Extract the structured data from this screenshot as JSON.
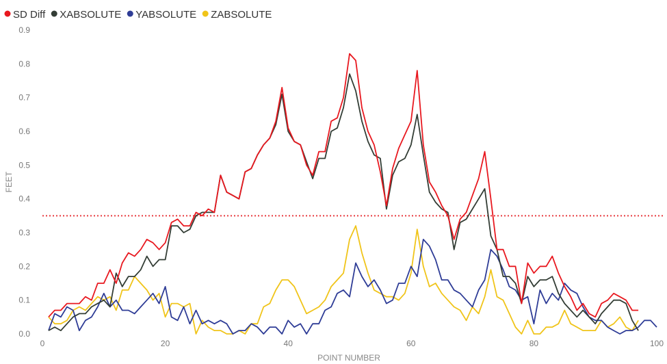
{
  "chart_data": {
    "type": "line",
    "xlabel": "POINT NUMBER",
    "ylabel": "FEET",
    "xlim": [
      0,
      100
    ],
    "ylim": [
      0,
      0.9
    ],
    "x_ticks": [
      0,
      20,
      40,
      60,
      80,
      100
    ],
    "y_ticks": [
      0.0,
      0.1,
      0.2,
      0.3,
      0.4,
      0.5,
      0.6,
      0.7,
      0.8,
      0.9
    ],
    "y_tick_labels": [
      "0.0",
      "0.1",
      "0.2",
      "0.3",
      "0.4",
      "0.5",
      "0.6",
      "0.7",
      "0.8",
      "0.9"
    ],
    "x_tick_labels": [
      "0",
      "20",
      "40",
      "60",
      "80",
      "100"
    ],
    "legend_position": "top-left",
    "grid": false,
    "reference_line": {
      "y": 0.35,
      "color": "#e8383d",
      "style": "dotted"
    },
    "series": [
      {
        "name": "SD Diff",
        "color": "#e8181f",
        "values": [
          0.05,
          0.07,
          0.07,
          0.09,
          0.09,
          0.09,
          0.11,
          0.1,
          0.15,
          0.15,
          0.19,
          0.15,
          0.21,
          0.24,
          0.23,
          0.25,
          0.28,
          0.27,
          0.25,
          0.27,
          0.33,
          0.34,
          0.32,
          0.32,
          0.36,
          0.35,
          0.37,
          0.36,
          0.47,
          0.42,
          0.41,
          0.4,
          0.48,
          0.49,
          0.53,
          0.56,
          0.58,
          0.63,
          0.73,
          0.61,
          0.57,
          0.56,
          0.5,
          0.47,
          0.54,
          0.54,
          0.63,
          0.64,
          0.7,
          0.83,
          0.81,
          0.67,
          0.6,
          0.56,
          0.48,
          0.38,
          0.49,
          0.55,
          0.59,
          0.63,
          0.78,
          0.56,
          0.45,
          0.42,
          0.38,
          0.35,
          0.28,
          0.34,
          0.36,
          0.41,
          0.46,
          0.54,
          0.4,
          0.25,
          0.25,
          0.2,
          0.2,
          0.09,
          0.21,
          0.18,
          0.2,
          0.2,
          0.23,
          0.18,
          0.14,
          0.11,
          0.07,
          0.09,
          0.06,
          0.05,
          0.09,
          0.1,
          0.12,
          0.11,
          0.1,
          0.07,
          0.07
        ]
      },
      {
        "name": "XABSOLUTE",
        "color": "#333d35",
        "values": [
          0.01,
          0.02,
          0.01,
          0.03,
          0.05,
          0.06,
          0.06,
          0.08,
          0.09,
          0.1,
          0.08,
          0.18,
          0.14,
          0.17,
          0.17,
          0.19,
          0.23,
          0.2,
          0.22,
          0.22,
          0.32,
          0.32,
          0.3,
          0.31,
          0.35,
          0.36,
          0.36,
          0.36,
          0.47,
          0.42,
          0.41,
          0.4,
          0.48,
          0.49,
          0.53,
          0.56,
          0.58,
          0.62,
          0.71,
          0.6,
          0.57,
          0.56,
          0.51,
          0.46,
          0.52,
          0.52,
          0.6,
          0.61,
          0.67,
          0.77,
          0.72,
          0.63,
          0.57,
          0.53,
          0.52,
          0.37,
          0.47,
          0.51,
          0.52,
          0.56,
          0.65,
          0.53,
          0.42,
          0.39,
          0.37,
          0.36,
          0.25,
          0.33,
          0.34,
          0.37,
          0.4,
          0.43,
          0.29,
          0.25,
          0.17,
          0.17,
          0.15,
          0.09,
          0.17,
          0.14,
          0.16,
          0.16,
          0.17,
          0.12,
          0.09,
          0.07,
          0.05,
          0.07,
          0.05,
          0.03,
          0.06,
          0.08,
          0.1,
          0.1,
          0.09,
          0.04,
          0.01
        ]
      },
      {
        "name": "YABSOLUTE",
        "color": "#2e3c96",
        "values": [
          0.01,
          0.06,
          0.05,
          0.08,
          0.07,
          0.01,
          0.04,
          0.05,
          0.08,
          0.12,
          0.08,
          0.1,
          0.07,
          0.07,
          0.06,
          0.08,
          0.1,
          0.12,
          0.09,
          0.14,
          0.05,
          0.04,
          0.08,
          0.03,
          0.07,
          0.03,
          0.04,
          0.03,
          0.04,
          0.03,
          0.0,
          0.01,
          0.01,
          0.03,
          0.02,
          0.0,
          0.02,
          0.02,
          0.0,
          0.04,
          0.02,
          0.03,
          0.0,
          0.03,
          0.03,
          0.07,
          0.08,
          0.12,
          0.13,
          0.11,
          0.21,
          0.17,
          0.14,
          0.16,
          0.13,
          0.09,
          0.1,
          0.15,
          0.15,
          0.2,
          0.17,
          0.28,
          0.26,
          0.22,
          0.16,
          0.16,
          0.13,
          0.12,
          0.1,
          0.08,
          0.13,
          0.16,
          0.25,
          0.23,
          0.19,
          0.14,
          0.13,
          0.1,
          0.11,
          0.03,
          0.13,
          0.09,
          0.12,
          0.1,
          0.15,
          0.13,
          0.12,
          0.08,
          0.05,
          0.04,
          0.04,
          0.02,
          0.01,
          0.0,
          0.01,
          0.01,
          0.02,
          0.04,
          0.04,
          0.02
        ]
      },
      {
        "name": "ZABSOLUTE",
        "color": "#f0c419",
        "values": [
          0.05,
          0.03,
          0.03,
          0.04,
          0.07,
          0.08,
          0.07,
          0.09,
          0.11,
          0.1,
          0.11,
          0.07,
          0.13,
          0.13,
          0.17,
          0.15,
          0.13,
          0.1,
          0.12,
          0.05,
          0.09,
          0.09,
          0.08,
          0.09,
          0.0,
          0.04,
          0.02,
          0.01,
          0.01,
          0.0,
          0.0,
          0.01,
          0.0,
          0.03,
          0.03,
          0.08,
          0.09,
          0.13,
          0.16,
          0.16,
          0.14,
          0.1,
          0.06,
          0.07,
          0.08,
          0.1,
          0.14,
          0.16,
          0.18,
          0.28,
          0.32,
          0.24,
          0.18,
          0.13,
          0.12,
          0.11,
          0.11,
          0.1,
          0.12,
          0.18,
          0.31,
          0.2,
          0.14,
          0.15,
          0.12,
          0.1,
          0.08,
          0.07,
          0.04,
          0.08,
          0.06,
          0.11,
          0.19,
          0.11,
          0.1,
          0.06,
          0.02,
          0.0,
          0.04,
          0.0,
          0.0,
          0.02,
          0.02,
          0.03,
          0.07,
          0.03,
          0.02,
          0.01,
          0.01,
          0.01,
          0.04,
          0.02,
          0.03,
          0.05,
          0.02,
          0.01,
          0.04
        ]
      }
    ]
  }
}
